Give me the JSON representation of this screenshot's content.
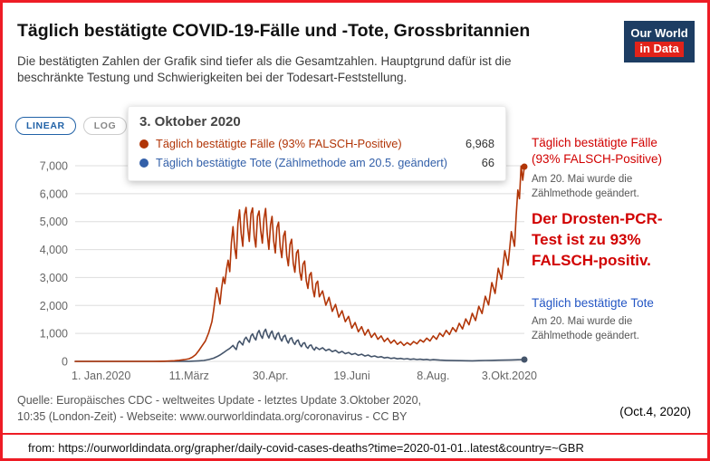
{
  "frame": {
    "title": "Täglich bestätigte COVID-19-Fälle und -Tote, Grossbritannien",
    "subtitle": "Die bestätigten Zahlen der Grafik sind tiefer als die Gesamtzahlen. Hauptgrund dafür ist die beschränkte Testung und Schwierigkeiten bei der Todesart-Feststellung."
  },
  "logo": {
    "line1": "Our World",
    "line2": "in Data"
  },
  "toggle": {
    "linear": "LINEAR",
    "log": "LOG"
  },
  "tooltip": {
    "date": "3. Oktober 2020",
    "rows": [
      {
        "label": "Täglich bestätigte Fälle (93% FALSCH-Positive)",
        "value": "6,968",
        "color": "#b13507"
      },
      {
        "label": "Täglich bestätigte Tote (Zählmethode am 20.5. geändert)",
        "value": "66",
        "color": "#3360a9"
      }
    ]
  },
  "annotations": {
    "cases_label_line1": "Täglich bestätigte Fälle",
    "cases_label_line2": "(93% FALSCH-Positive)",
    "cases_note_line1": "Am 20. Mai wurde die",
    "cases_note_line2": "Zählmethode geändert.",
    "claim_line1": "Der Drosten-PCR-",
    "claim_line2": "Test ist zu 93%",
    "claim_line3": "FALSCH-positiv.",
    "deaths_label": "Täglich bestätigte Tote",
    "deaths_note_line1": "Am 20. Mai wurde die",
    "deaths_note_line2": "Zählmethode geändert."
  },
  "footer": {
    "source_line1": "Quelle: Europäisches CDC - weltweites Update - letztes Update 3.Oktober 2020,",
    "source_line2": "10:35 (London-Zeit) - Webseite: www.ourworldindata.org/coronavirus - CC BY",
    "date_note": "(Oct.4, 2020)"
  },
  "urlbar": {
    "text": "from: https://ourworldindata.org/grapher/daily-covid-cases-deaths?time=2020-01-01..latest&country=~GBR"
  },
  "colors": {
    "frame_border": "#ee1c25",
    "annotation_red": "#d10000",
    "annotation_blue": "#2456c4",
    "logo_bg": "#1d3d63",
    "logo_accent": "#e2231a",
    "linear_active": "#2162a7",
    "grid": "#dddddd",
    "axis_text": "#666666"
  },
  "chart_data": {
    "type": "line",
    "title": "Täglich bestätigte COVID-19-Fälle und -Tote, Grossbritannien",
    "x_unit": "days since 1. Jan. 2020",
    "grid": true,
    "legend_position": "right-annotations",
    "ylim": [
      0,
      7000
    ],
    "y_ticks": [
      0,
      1000,
      2000,
      3000,
      4000,
      5000,
      6000,
      7000
    ],
    "y_tick_labels": [
      "0",
      "1,000",
      "2,000",
      "3,000",
      "4,000",
      "5,000",
      "6,000",
      "7,000"
    ],
    "x_ticks": [
      {
        "day": 0,
        "label": "1. Jan.2020"
      },
      {
        "day": 70,
        "label": "11.März"
      },
      {
        "day": 120,
        "label": "30.Apr."
      },
      {
        "day": 170,
        "label": "19.Juni"
      },
      {
        "day": 220,
        "label": "8.Aug."
      },
      {
        "day": 276,
        "label": "3.Okt.2020"
      }
    ],
    "series": [
      {
        "name": "Täglich bestätigte Fälle (93% FALSCH-Positive)",
        "color": "#b13507",
        "last_value": 6968,
        "points": [
          [
            0,
            0
          ],
          [
            14,
            0
          ],
          [
            28,
            0
          ],
          [
            40,
            0
          ],
          [
            48,
            1
          ],
          [
            52,
            3
          ],
          [
            55,
            6
          ],
          [
            58,
            12
          ],
          [
            61,
            22
          ],
          [
            64,
            38
          ],
          [
            67,
            60
          ],
          [
            70,
            95
          ],
          [
            72,
            150
          ],
          [
            74,
            240
          ],
          [
            76,
            390
          ],
          [
            78,
            560
          ],
          [
            80,
            730
          ],
          [
            82,
            1020
          ],
          [
            84,
            1420
          ],
          [
            85,
            1800
          ],
          [
            86,
            2250
          ],
          [
            87,
            2630
          ],
          [
            88,
            2380
          ],
          [
            89,
            2050
          ],
          [
            90,
            2620
          ],
          [
            91,
            3010
          ],
          [
            92,
            2780
          ],
          [
            93,
            3290
          ],
          [
            94,
            3620
          ],
          [
            95,
            3210
          ],
          [
            96,
            4250
          ],
          [
            97,
            4820
          ],
          [
            98,
            4080
          ],
          [
            99,
            3680
          ],
          [
            100,
            4940
          ],
          [
            101,
            5420
          ],
          [
            102,
            4580
          ],
          [
            103,
            4120
          ],
          [
            104,
            5230
          ],
          [
            105,
            5510
          ],
          [
            106,
            4790
          ],
          [
            107,
            4290
          ],
          [
            108,
            5290
          ],
          [
            109,
            5490
          ],
          [
            110,
            4480
          ],
          [
            111,
            4090
          ],
          [
            112,
            5190
          ],
          [
            113,
            5380
          ],
          [
            114,
            4680
          ],
          [
            115,
            4230
          ],
          [
            116,
            5110
          ],
          [
            117,
            5470
          ],
          [
            118,
            4570
          ],
          [
            119,
            4010
          ],
          [
            120,
            4880
          ],
          [
            121,
            5190
          ],
          [
            122,
            4310
          ],
          [
            123,
            3880
          ],
          [
            124,
            4790
          ],
          [
            125,
            4980
          ],
          [
            126,
            4090
          ],
          [
            127,
            3710
          ],
          [
            128,
            4480
          ],
          [
            129,
            4660
          ],
          [
            130,
            3790
          ],
          [
            131,
            3420
          ],
          [
            132,
            4180
          ],
          [
            133,
            4370
          ],
          [
            134,
            3510
          ],
          [
            135,
            3190
          ],
          [
            136,
            3880
          ],
          [
            137,
            3990
          ],
          [
            138,
            3210
          ],
          [
            139,
            2910
          ],
          [
            140,
            3480
          ],
          [
            141,
            3590
          ],
          [
            142,
            2890
          ],
          [
            143,
            2610
          ],
          [
            144,
            3090
          ],
          [
            145,
            3180
          ],
          [
            146,
            2590
          ],
          [
            147,
            2310
          ],
          [
            148,
            2780
          ],
          [
            149,
            2870
          ],
          [
            150,
            2310
          ],
          [
            152,
            2520
          ],
          [
            154,
            2010
          ],
          [
            156,
            2290
          ],
          [
            158,
            1790
          ],
          [
            160,
            2040
          ],
          [
            162,
            1580
          ],
          [
            164,
            1810
          ],
          [
            166,
            1420
          ],
          [
            168,
            1610
          ],
          [
            170,
            1190
          ],
          [
            172,
            1390
          ],
          [
            174,
            1060
          ],
          [
            176,
            1240
          ],
          [
            178,
            940
          ],
          [
            180,
            1140
          ],
          [
            182,
            860
          ],
          [
            184,
            1010
          ],
          [
            186,
            790
          ],
          [
            188,
            910
          ],
          [
            190,
            710
          ],
          [
            192,
            830
          ],
          [
            194,
            650
          ],
          [
            196,
            760
          ],
          [
            198,
            610
          ],
          [
            200,
            700
          ],
          [
            202,
            570
          ],
          [
            204,
            670
          ],
          [
            206,
            590
          ],
          [
            208,
            710
          ],
          [
            210,
            630
          ],
          [
            212,
            770
          ],
          [
            214,
            690
          ],
          [
            216,
            830
          ],
          [
            218,
            730
          ],
          [
            220,
            910
          ],
          [
            222,
            790
          ],
          [
            224,
            1010
          ],
          [
            226,
            890
          ],
          [
            228,
            1110
          ],
          [
            230,
            960
          ],
          [
            232,
            1210
          ],
          [
            234,
            1060
          ],
          [
            236,
            1360
          ],
          [
            238,
            1160
          ],
          [
            240,
            1520
          ],
          [
            242,
            1310
          ],
          [
            244,
            1720
          ],
          [
            246,
            1460
          ],
          [
            248,
            1970
          ],
          [
            250,
            1710
          ],
          [
            252,
            2330
          ],
          [
            254,
            2020
          ],
          [
            256,
            2820
          ],
          [
            258,
            2430
          ],
          [
            260,
            3330
          ],
          [
            262,
            2940
          ],
          [
            264,
            3960
          ],
          [
            266,
            3440
          ],
          [
            268,
            4640
          ],
          [
            270,
            4120
          ],
          [
            271,
            5230
          ],
          [
            272,
            6130
          ],
          [
            273,
            5820
          ],
          [
            274,
            6990
          ],
          [
            275,
            6480
          ],
          [
            276,
            6968
          ]
        ]
      },
      {
        "name": "Täglich bestätigte Tote (Zählmethode am 20.5. geändert)",
        "color": "#44546a",
        "last_value": 66,
        "points": [
          [
            0,
            0
          ],
          [
            40,
            0
          ],
          [
            56,
            0
          ],
          [
            62,
            1
          ],
          [
            66,
            2
          ],
          [
            70,
            4
          ],
          [
            73,
            9
          ],
          [
            76,
            18
          ],
          [
            79,
            33
          ],
          [
            82,
            64
          ],
          [
            85,
            115
          ],
          [
            87,
            165
          ],
          [
            89,
            226
          ],
          [
            91,
            305
          ],
          [
            93,
            388
          ],
          [
            95,
            465
          ],
          [
            97,
            570
          ],
          [
            98,
            486
          ],
          [
            99,
            424
          ],
          [
            100,
            646
          ],
          [
            101,
            726
          ],
          [
            102,
            654
          ],
          [
            103,
            586
          ],
          [
            104,
            786
          ],
          [
            105,
            866
          ],
          [
            106,
            764
          ],
          [
            107,
            684
          ],
          [
            108,
            906
          ],
          [
            109,
            986
          ],
          [
            110,
            846
          ],
          [
            111,
            766
          ],
          [
            112,
            1006
          ],
          [
            113,
            1106
          ],
          [
            114,
            926
          ],
          [
            115,
            826
          ],
          [
            116,
            1056
          ],
          [
            117,
            1152
          ],
          [
            118,
            956
          ],
          [
            119,
            836
          ],
          [
            120,
            1006
          ],
          [
            121,
            1086
          ],
          [
            122,
            886
          ],
          [
            123,
            786
          ],
          [
            124,
            966
          ],
          [
            125,
            1026
          ],
          [
            126,
            826
          ],
          [
            127,
            726
          ],
          [
            128,
            886
          ],
          [
            129,
            936
          ],
          [
            130,
            756
          ],
          [
            131,
            656
          ],
          [
            132,
            806
          ],
          [
            133,
            846
          ],
          [
            134,
            686
          ],
          [
            135,
            606
          ],
          [
            136,
            726
          ],
          [
            137,
            766
          ],
          [
            138,
            606
          ],
          [
            139,
            526
          ],
          [
            140,
            646
          ],
          [
            141,
            666
          ],
          [
            142,
            526
          ],
          [
            143,
            466
          ],
          [
            144,
            566
          ],
          [
            145,
            586
          ],
          [
            146,
            466
          ],
          [
            147,
            406
          ],
          [
            148,
            506
          ],
          [
            150,
            426
          ],
          [
            152,
            486
          ],
          [
            154,
            386
          ],
          [
            156,
            436
          ],
          [
            158,
            346
          ],
          [
            160,
            396
          ],
          [
            162,
            306
          ],
          [
            164,
            356
          ],
          [
            166,
            276
          ],
          [
            168,
            316
          ],
          [
            170,
            246
          ],
          [
            172,
            286
          ],
          [
            174,
            216
          ],
          [
            176,
            256
          ],
          [
            178,
            190
          ],
          [
            180,
            226
          ],
          [
            182,
            165
          ],
          [
            184,
            196
          ],
          [
            186,
            145
          ],
          [
            188,
            170
          ],
          [
            190,
            124
          ],
          [
            192,
            144
          ],
          [
            194,
            104
          ],
          [
            196,
            124
          ],
          [
            198,
            92
          ],
          [
            200,
            108
          ],
          [
            202,
            82
          ],
          [
            204,
            97
          ],
          [
            206,
            72
          ],
          [
            208,
            87
          ],
          [
            210,
            64
          ],
          [
            212,
            77
          ],
          [
            214,
            57
          ],
          [
            216,
            70
          ],
          [
            218,
            50
          ],
          [
            220,
            62
          ],
          [
            224,
            46
          ],
          [
            228,
            36
          ],
          [
            232,
            29
          ],
          [
            236,
            26
          ],
          [
            240,
            23
          ],
          [
            244,
            21
          ],
          [
            248,
            26
          ],
          [
            252,
            31
          ],
          [
            256,
            36
          ],
          [
            260,
            41
          ],
          [
            264,
            46
          ],
          [
            268,
            51
          ],
          [
            272,
            58
          ],
          [
            276,
            66
          ]
        ]
      }
    ]
  }
}
